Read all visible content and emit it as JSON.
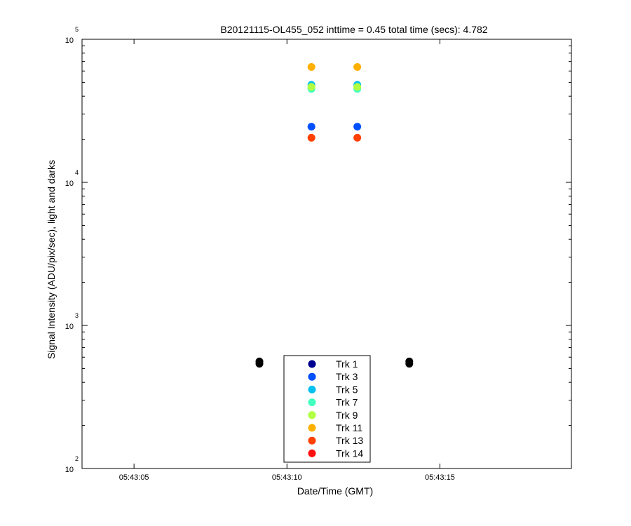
{
  "chart_data": {
    "type": "scatter",
    "title": "B20121115-OL455_052 inttime = 0.45 total time (secs): 4.782",
    "xlabel": "Date/Time (GMT)",
    "ylabel": "Signal Intensity (ADU/pix/sec), light and darks",
    "x_axis": {
      "range_seconds": [
        3.3,
        19.3
      ],
      "ticks": [
        {
          "value": 5,
          "label": "05:43:05"
        },
        {
          "value": 10,
          "label": "05:43:10"
        },
        {
          "value": 15,
          "label": "05:43:15"
        }
      ]
    },
    "y_axis": {
      "scale": "log",
      "range": [
        100,
        100000
      ],
      "ticks": [
        {
          "value": 100,
          "base": "10",
          "exp": "2"
        },
        {
          "value": 1000,
          "base": "10",
          "exp": "3"
        },
        {
          "value": 10000,
          "base": "10",
          "exp": "4"
        },
        {
          "value": 100000,
          "base": "10",
          "exp": "5"
        }
      ]
    },
    "grid": false,
    "legend_position": "bottom-center",
    "series": [
      {
        "name": "Trk 1",
        "color": "#00008f",
        "points": []
      },
      {
        "name": "Trk 3",
        "color": "#0050ff",
        "points": [
          [
            10.8,
            24500
          ],
          [
            12.3,
            24500
          ]
        ]
      },
      {
        "name": "Trk 5",
        "color": "#00c0f0",
        "points": [
          [
            10.8,
            48000
          ],
          [
            12.3,
            48000
          ]
        ]
      },
      {
        "name": "Trk 7",
        "color": "#40ffc0",
        "points": [
          [
            10.8,
            45000
          ],
          [
            12.3,
            45000
          ]
        ]
      },
      {
        "name": "Trk 9",
        "color": "#b0ff40",
        "points": [
          [
            10.8,
            46500
          ],
          [
            12.3,
            46500
          ]
        ]
      },
      {
        "name": "Trk 11",
        "color": "#ffb000",
        "points": [
          [
            10.8,
            64000
          ],
          [
            12.3,
            64000
          ]
        ]
      },
      {
        "name": "Trk 13",
        "color": "#ff4000",
        "points": [
          [
            10.8,
            20500
          ],
          [
            12.3,
            20500
          ]
        ]
      },
      {
        "name": "Trk 14",
        "color": "#ff1010",
        "points": []
      }
    ],
    "dark_points": {
      "color": "#000000",
      "points": [
        [
          9.1,
          540
        ],
        [
          9.1,
          560
        ],
        [
          14.0,
          540
        ],
        [
          14.0,
          560
        ]
      ]
    }
  }
}
